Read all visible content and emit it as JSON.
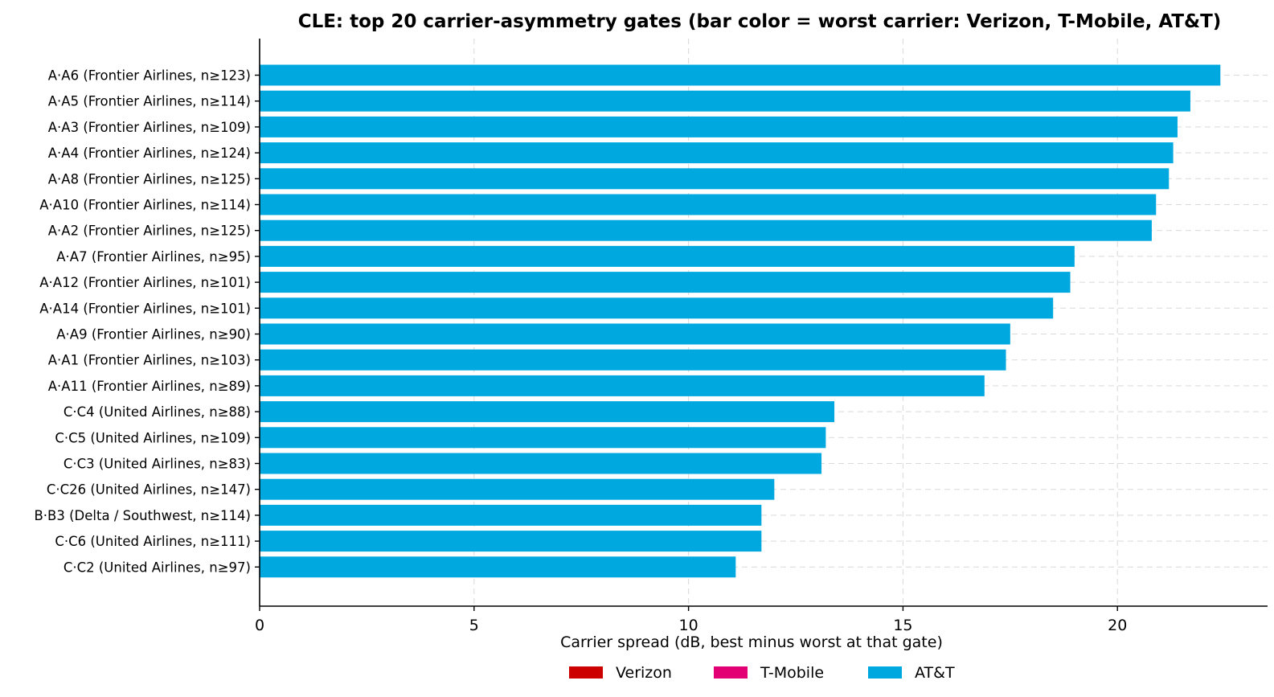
{
  "chart_data": {
    "type": "bar",
    "orientation": "horizontal",
    "title": "CLE: top 20 carrier-asymmetry gates (bar color = worst carrier: Verizon, T-Mobile, AT&T)",
    "xlabel": "Carrier spread (dB, best minus worst at that gate)",
    "ylabel": "",
    "xlim": [
      0,
      23.5
    ],
    "xticks": [
      0,
      5,
      10,
      15,
      20
    ],
    "xtick_labels": [
      "0",
      "5",
      "10",
      "15",
      "20"
    ],
    "grid": "x and y, dashed",
    "legend_position": "bottom-center",
    "legend": [
      {
        "label": "Verizon",
        "color": "#cd0000"
      },
      {
        "label": "T-Mobile",
        "color": "#e20074"
      },
      {
        "label": "AT&T",
        "color": "#00a8e0"
      }
    ],
    "categories": [
      "A·A6 (Frontier Airlines, n≥123)",
      "A·A5 (Frontier Airlines, n≥114)",
      "A·A3 (Frontier Airlines, n≥109)",
      "A·A4 (Frontier Airlines, n≥124)",
      "A·A8 (Frontier Airlines, n≥125)",
      "A·A10 (Frontier Airlines, n≥114)",
      "A·A2 (Frontier Airlines, n≥125)",
      "A·A7 (Frontier Airlines, n≥95)",
      "A·A12 (Frontier Airlines, n≥101)",
      "A·A14 (Frontier Airlines, n≥101)",
      "A·A9 (Frontier Airlines, n≥90)",
      "A·A1 (Frontier Airlines, n≥103)",
      "A·A11 (Frontier Airlines, n≥89)",
      "C·C4 (United Airlines, n≥88)",
      "C·C5 (United Airlines, n≥109)",
      "C·C3 (United Airlines, n≥83)",
      "C·C26 (United Airlines, n≥147)",
      "B·B3 (Delta / Southwest, n≥114)",
      "C·C6 (United Airlines, n≥111)",
      "C·C2 (United Airlines, n≥97)"
    ],
    "values": [
      22.4,
      21.7,
      21.4,
      21.3,
      21.2,
      20.9,
      20.8,
      19.0,
      18.9,
      18.5,
      17.5,
      17.4,
      16.9,
      13.4,
      13.2,
      13.1,
      12.0,
      11.7,
      11.7,
      11.1
    ],
    "worst_carrier": [
      "AT&T",
      "AT&T",
      "AT&T",
      "AT&T",
      "AT&T",
      "AT&T",
      "AT&T",
      "AT&T",
      "AT&T",
      "AT&T",
      "AT&T",
      "AT&T",
      "AT&T",
      "AT&T",
      "AT&T",
      "AT&T",
      "AT&T",
      "AT&T",
      "AT&T",
      "AT&T"
    ]
  }
}
